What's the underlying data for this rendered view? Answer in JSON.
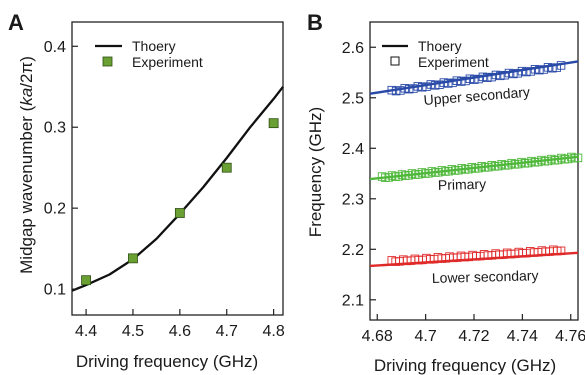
{
  "chart_data": [
    {
      "panel": "A",
      "type": "scatter",
      "xlabel": "Driving frequency (GHz)",
      "ylabel_parts": [
        "Midgap wavenumber (",
        "ka",
        "/2π)"
      ],
      "xlim": [
        4.37,
        4.82
      ],
      "ylim": [
        0.068,
        0.43
      ],
      "x_ticks": [
        "4.4",
        "4.5",
        "4.6",
        "4.7",
        "4.8"
      ],
      "y_ticks": [
        "0.1",
        "0.2",
        "0.3",
        "0.4"
      ],
      "grid": false,
      "legend": [
        {
          "label": "Thoery",
          "style": "line"
        },
        {
          "label": "Experiment",
          "style": "filled-square"
        }
      ],
      "series": [
        {
          "name": "Thoery",
          "style": "line",
          "color": "#111111",
          "x": [
            4.37,
            4.4,
            4.45,
            4.5,
            4.55,
            4.6,
            4.65,
            4.7,
            4.75,
            4.8,
            4.82
          ],
          "y": [
            0.098,
            0.105,
            0.118,
            0.137,
            0.162,
            0.193,
            0.226,
            0.262,
            0.3,
            0.335,
            0.35
          ]
        },
        {
          "name": "Experiment",
          "style": "filled-square",
          "color": "#6aa033",
          "x": [
            4.4,
            4.5,
            4.6,
            4.7,
            4.8
          ],
          "y": [
            0.111,
            0.138,
            0.194,
            0.25,
            0.305
          ]
        }
      ]
    },
    {
      "panel": "B",
      "type": "scatter",
      "xlabel": "Driving frequency (GHz)",
      "ylabel": "Frequency (GHz)",
      "xlim": [
        4.677,
        4.763
      ],
      "ylim": [
        2.06,
        2.65
      ],
      "x_ticks": [
        "4.68",
        "4.7",
        "4.72",
        "4.74",
        "4.76"
      ],
      "y_ticks": [
        "2.1",
        "2.2",
        "2.3",
        "2.4",
        "2.5",
        "2.6"
      ],
      "grid": false,
      "legend": [
        {
          "label": "Thoery",
          "style": "line"
        },
        {
          "label": "Experiment",
          "style": "open-square"
        }
      ],
      "series": [
        {
          "name": "Upper secondary",
          "color": "#2a4aa8",
          "theory": {
            "x": [
              4.677,
              4.763
            ],
            "y": [
              2.508,
              2.572
            ]
          },
          "experiment": {
            "x_start": 4.686,
            "x_end": 4.756,
            "count": 40,
            "y_start": 2.512,
            "y_end": 2.561
          }
        },
        {
          "name": "Primary",
          "color": "#4fb83b",
          "theory": {
            "x": [
              4.677,
              4.763
            ],
            "y": [
              2.339,
              2.383
            ]
          },
          "experiment": {
            "x_start": 4.682,
            "x_end": 4.763,
            "count": 60,
            "y_start": 2.341,
            "y_end": 2.381
          }
        },
        {
          "name": "Lower secondary",
          "color": "#e02a2a",
          "theory": {
            "x": [
              4.677,
              4.763
            ],
            "y": [
              2.167,
              2.193
            ]
          },
          "experiment": {
            "x_start": 4.686,
            "x_end": 4.756,
            "count": 45,
            "y_start": 2.175,
            "y_end": 2.197
          }
        }
      ]
    }
  ]
}
